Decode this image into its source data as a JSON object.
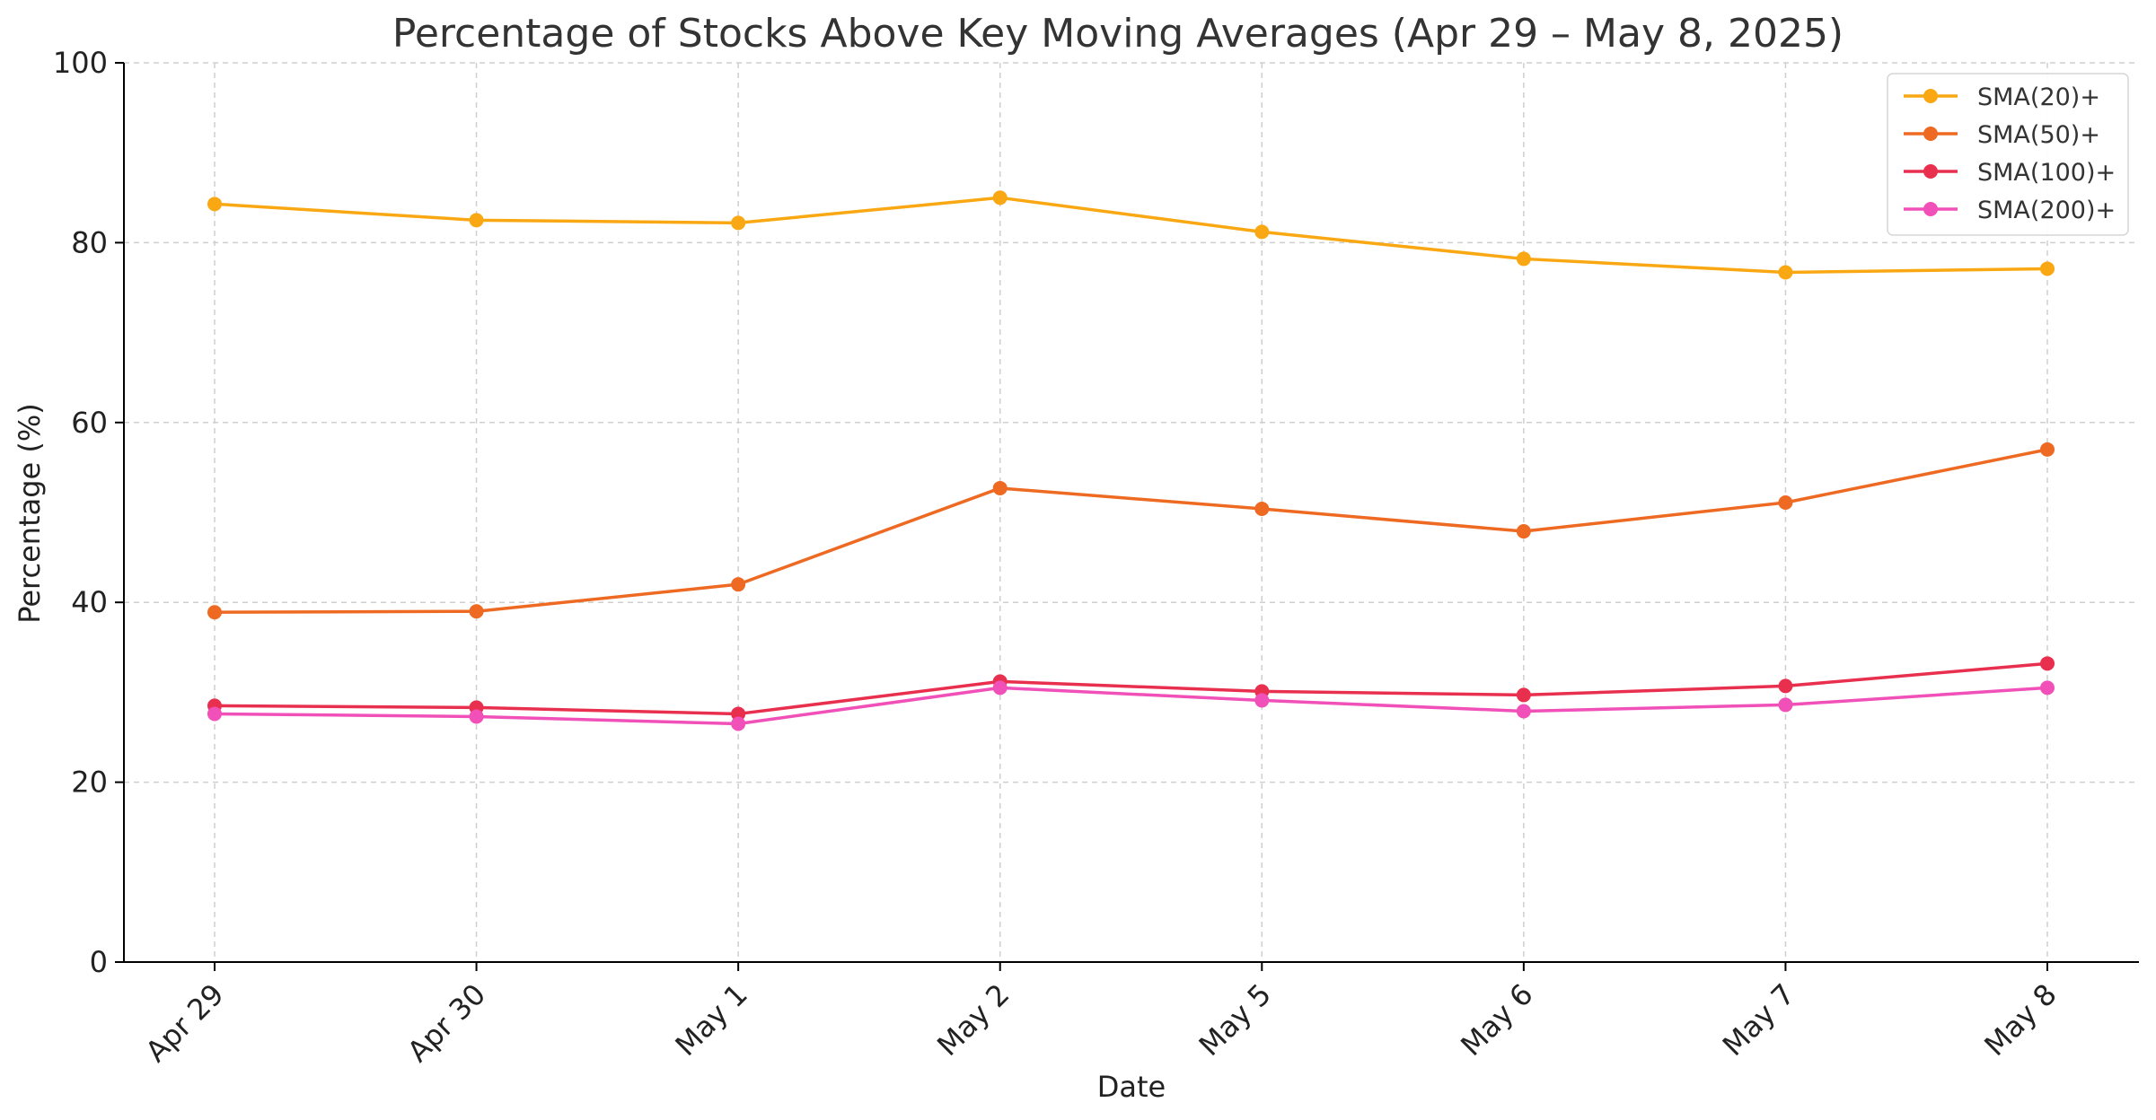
{
  "chart_data": {
    "type": "line",
    "title": "Percentage of Stocks Above Key Moving Averages (Apr 29 – May 8, 2025)",
    "xlabel": "Date",
    "ylabel": "Percentage (%)",
    "categories": [
      "Apr 29",
      "Apr 30",
      "May 1",
      "May 2",
      "May 5",
      "May 6",
      "May 7",
      "May 8"
    ],
    "ylim": [
      0,
      100
    ],
    "yticks": [
      0,
      20,
      40,
      60,
      80,
      100
    ],
    "grid": true,
    "legend_position": "top-right",
    "series": [
      {
        "name": "SMA(20)+",
        "color": "#f9a813",
        "values": [
          84.3,
          82.5,
          82.2,
          85.0,
          81.2,
          78.2,
          76.7,
          77.1
        ]
      },
      {
        "name": "SMA(50)+",
        "color": "#ee6a23",
        "values": [
          38.9,
          39.0,
          42.0,
          52.7,
          50.4,
          47.9,
          51.1,
          57.0
        ]
      },
      {
        "name": "SMA(100)+",
        "color": "#e8304e",
        "values": [
          28.5,
          28.3,
          27.6,
          31.2,
          30.1,
          29.7,
          30.7,
          33.2
        ]
      },
      {
        "name": "SMA(200)+",
        "color": "#f050b8",
        "values": [
          27.6,
          27.3,
          26.5,
          30.5,
          29.1,
          27.9,
          28.6,
          30.5
        ]
      }
    ]
  }
}
